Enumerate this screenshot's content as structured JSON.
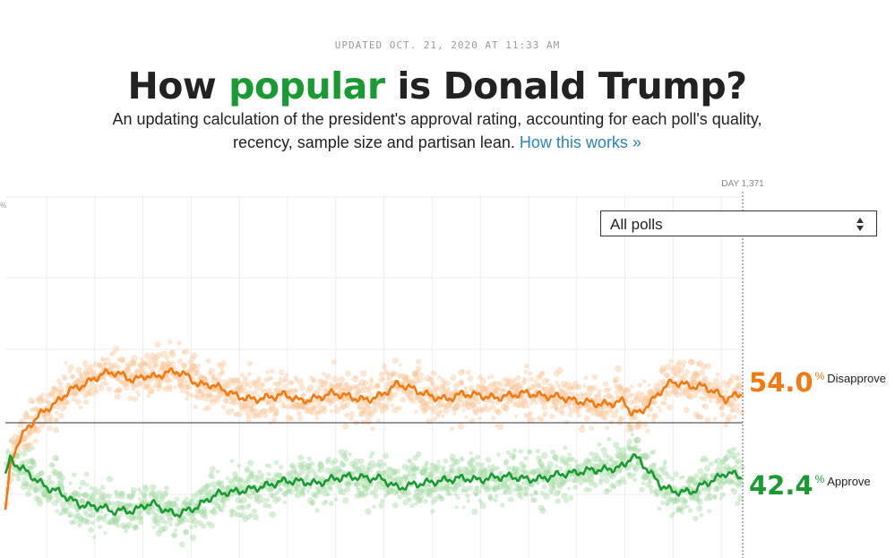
{
  "header": {
    "updated": "UPDATED OCT. 21, 2020 AT 11:33 AM",
    "title_pre": "How ",
    "title_highlight": "popular",
    "title_post": " is Donald Trump?",
    "subtitle_line1": "An updating calculation of the president's approval rating, accounting for each poll's quality,",
    "subtitle_line2": "recency, sample size and partisan lean.",
    "link": "How this works »"
  },
  "select": {
    "value": "All polls"
  },
  "colors": {
    "disapprove": "#f27a11",
    "approve": "#1a9a33",
    "disapprove_dots": "#fbc89b",
    "approve_dots": "#a9dba7",
    "link": "#2a83c4"
  },
  "readout": {
    "disapprove": {
      "value": "54.0",
      "unit": "%",
      "label": "Disapprove"
    },
    "approve": {
      "value": "42.4",
      "unit": "%",
      "label": "Approve"
    }
  },
  "chart_data": {
    "type": "line",
    "x_label_top": "DAY 1,371",
    "y_tick_label": "%",
    "xlim": [
      1,
      1371
    ],
    "ylim": [
      30,
      70
    ],
    "reference_line": 50,
    "current_day": 1371,
    "series": [
      {
        "name": "Disapprove",
        "color": "#f27a11",
        "x": [
          1,
          10,
          20,
          30,
          45,
          60,
          80,
          100,
          120,
          140,
          160,
          180,
          200,
          220,
          240,
          260,
          280,
          300,
          320,
          340,
          360,
          380,
          400,
          430,
          460,
          490,
          520,
          550,
          580,
          610,
          640,
          670,
          700,
          730,
          760,
          790,
          820,
          850,
          880,
          910,
          940,
          970,
          1000,
          1030,
          1060,
          1090,
          1110,
          1130,
          1150,
          1165,
          1180,
          1200,
          1220,
          1240,
          1260,
          1280,
          1300,
          1320,
          1340,
          1355,
          1371
        ],
        "y": [
          38.0,
          44.0,
          46.5,
          48.0,
          49.5,
          50.8,
          52.0,
          53.0,
          54.5,
          55.0,
          55.8,
          56.7,
          57.0,
          56.5,
          55.8,
          56.5,
          56.3,
          56.9,
          57.1,
          56.4,
          55.2,
          55.3,
          54.8,
          53.7,
          53.2,
          53.5,
          53.9,
          53.0,
          53.4,
          54.1,
          53.6,
          53.1,
          53.8,
          55.4,
          54.6,
          53.7,
          53.2,
          54.0,
          53.8,
          53.4,
          53.8,
          54.1,
          53.7,
          53.6,
          53.0,
          52.8,
          52.5,
          52.7,
          53.0,
          51.3,
          51.4,
          52.8,
          54.5,
          55.7,
          55.3,
          55.0,
          55.0,
          54.2,
          53.2,
          53.7,
          54.0
        ]
      },
      {
        "name": "Approve",
        "color": "#1a9a33",
        "x": [
          1,
          10,
          20,
          30,
          45,
          60,
          80,
          100,
          120,
          140,
          160,
          180,
          200,
          220,
          240,
          260,
          280,
          300,
          320,
          340,
          360,
          380,
          400,
          430,
          460,
          490,
          520,
          550,
          580,
          610,
          640,
          670,
          700,
          730,
          760,
          790,
          820,
          850,
          880,
          910,
          940,
          970,
          1000,
          1030,
          1060,
          1090,
          1110,
          1130,
          1150,
          1165,
          1180,
          1200,
          1220,
          1240,
          1260,
          1280,
          1300,
          1320,
          1340,
          1355,
          1371
        ],
        "y": [
          43.0,
          45.0,
          44.3,
          43.8,
          43.0,
          42.0,
          41.0,
          40.5,
          39.5,
          38.7,
          38.5,
          38.4,
          37.8,
          37.9,
          37.8,
          38.7,
          38.8,
          37.8,
          37.4,
          37.9,
          38.5,
          39.6,
          40.3,
          40.5,
          40.9,
          41.4,
          42.0,
          41.9,
          41.6,
          42.3,
          42.6,
          42.4,
          42.3,
          41.0,
          41.5,
          41.8,
          42.1,
          42.4,
          42.1,
          42.5,
          42.6,
          42.2,
          42.3,
          42.9,
          43.1,
          43.5,
          43.5,
          43.7,
          44.0,
          45.5,
          44.8,
          43.0,
          41.3,
          40.6,
          40.4,
          40.6,
          41.6,
          42.2,
          43.1,
          42.9,
          42.4
        ]
      }
    ]
  }
}
